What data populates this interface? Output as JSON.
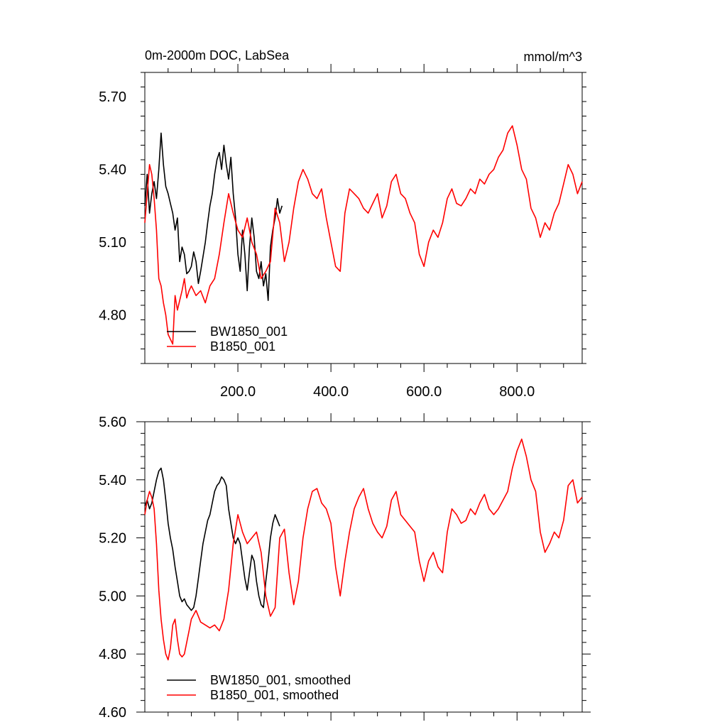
{
  "chart_data": [
    {
      "type": "line",
      "title": "0m-2000m DOC, LabSea",
      "units": "mmol/m^3",
      "xlim": [
        0,
        940
      ],
      "ylim": [
        4.6,
        5.8
      ],
      "xticks": [
        200,
        400,
        600,
        800
      ],
      "xtick_labels": [
        "200.0",
        "400.0",
        "600.0",
        "800.0"
      ],
      "yticks": [
        4.8,
        5.1,
        5.4,
        5.7
      ],
      "ytick_labels": [
        "4.80",
        "5.10",
        "5.40",
        "5.70"
      ],
      "legend_position": "bottom-left",
      "series": [
        {
          "name": "BW1850_001",
          "color": "#000000",
          "x": [
            0,
            5,
            10,
            15,
            20,
            25,
            30,
            35,
            40,
            45,
            50,
            55,
            60,
            65,
            70,
            75,
            80,
            85,
            90,
            95,
            100,
            105,
            110,
            115,
            120,
            125,
            130,
            135,
            140,
            145,
            150,
            155,
            160,
            165,
            170,
            175,
            180,
            185,
            190,
            195,
            200,
            205,
            210,
            215,
            220,
            225,
            230,
            235,
            240,
            245,
            250,
            255,
            260,
            265,
            270,
            275,
            280,
            285,
            290,
            295
          ],
          "y": [
            5.25,
            5.38,
            5.22,
            5.3,
            5.35,
            5.28,
            5.4,
            5.55,
            5.42,
            5.33,
            5.3,
            5.26,
            5.22,
            5.15,
            5.2,
            5.02,
            5.08,
            5.05,
            4.97,
            4.98,
            5.0,
            5.06,
            5.02,
            4.93,
            4.98,
            5.04,
            5.1,
            5.18,
            5.25,
            5.3,
            5.38,
            5.44,
            5.47,
            5.4,
            5.5,
            5.42,
            5.36,
            5.45,
            5.3,
            5.2,
            5.05,
            4.98,
            5.15,
            5.05,
            4.9,
            5.08,
            5.2,
            5.12,
            4.98,
            4.95,
            5.02,
            4.92,
            4.97,
            4.86,
            5.08,
            5.15,
            5.2,
            5.28,
            5.22,
            5.25
          ]
        },
        {
          "name": "B1850_001",
          "color": "#ff0000",
          "x": [
            0,
            5,
            10,
            15,
            20,
            25,
            30,
            35,
            40,
            45,
            50,
            55,
            60,
            65,
            70,
            75,
            80,
            85,
            90,
            95,
            100,
            110,
            120,
            130,
            140,
            150,
            160,
            170,
            180,
            190,
            200,
            210,
            220,
            230,
            240,
            250,
            260,
            270,
            280,
            290,
            300,
            310,
            320,
            330,
            340,
            350,
            360,
            370,
            380,
            390,
            400,
            410,
            420,
            430,
            440,
            450,
            460,
            470,
            480,
            490,
            500,
            510,
            520,
            530,
            540,
            550,
            560,
            570,
            580,
            590,
            600,
            610,
            620,
            630,
            640,
            650,
            660,
            670,
            680,
            690,
            700,
            710,
            720,
            730,
            740,
            750,
            760,
            770,
            780,
            790,
            800,
            810,
            820,
            830,
            840,
            850,
            860,
            870,
            880,
            890,
            900,
            910,
            920,
            930,
            940
          ],
          "y": [
            5.18,
            5.3,
            5.42,
            5.38,
            5.28,
            5.15,
            4.95,
            4.92,
            4.85,
            4.8,
            4.72,
            4.7,
            4.68,
            4.88,
            4.82,
            4.86,
            4.9,
            4.95,
            4.87,
            4.9,
            4.92,
            4.88,
            4.9,
            4.85,
            4.92,
            4.95,
            5.05,
            5.18,
            5.3,
            5.22,
            5.15,
            5.12,
            5.2,
            5.1,
            5.05,
            4.95,
            4.98,
            5.02,
            5.24,
            5.18,
            5.02,
            5.1,
            5.24,
            5.35,
            5.4,
            5.36,
            5.3,
            5.28,
            5.32,
            5.2,
            5.1,
            5.0,
            4.98,
            5.22,
            5.32,
            5.3,
            5.28,
            5.24,
            5.22,
            5.26,
            5.3,
            5.2,
            5.25,
            5.35,
            5.38,
            5.3,
            5.28,
            5.22,
            5.18,
            5.05,
            5.0,
            5.1,
            5.15,
            5.12,
            5.18,
            5.28,
            5.32,
            5.26,
            5.25,
            5.28,
            5.32,
            5.3,
            5.36,
            5.34,
            5.38,
            5.4,
            5.45,
            5.48,
            5.55,
            5.58,
            5.5,
            5.4,
            5.36,
            5.24,
            5.2,
            5.12,
            5.18,
            5.15,
            5.22,
            5.26,
            5.34,
            5.42,
            5.38,
            5.3,
            5.35
          ]
        }
      ]
    },
    {
      "type": "line",
      "title": "",
      "xlim": [
        0,
        940
      ],
      "ylim": [
        4.6,
        5.6
      ],
      "yticks": [
        4.6,
        4.8,
        5.0,
        5.2,
        5.4,
        5.6
      ],
      "ytick_labels": [
        "4.60",
        "4.80",
        "5.00",
        "5.20",
        "5.40",
        "5.60"
      ],
      "legend_position": "bottom-left",
      "series": [
        {
          "name": "BW1850_001, smoothed",
          "color": "#000000",
          "x": [
            0,
            5,
            10,
            15,
            20,
            25,
            30,
            35,
            40,
            45,
            50,
            55,
            60,
            65,
            70,
            75,
            80,
            85,
            90,
            95,
            100,
            105,
            110,
            115,
            120,
            125,
            130,
            135,
            140,
            145,
            150,
            155,
            160,
            165,
            170,
            175,
            180,
            185,
            190,
            195,
            200,
            205,
            210,
            215,
            220,
            225,
            230,
            235,
            240,
            245,
            250,
            255,
            260,
            265,
            270,
            275,
            280,
            285,
            290
          ],
          "y": [
            5.31,
            5.33,
            5.3,
            5.32,
            5.36,
            5.4,
            5.43,
            5.44,
            5.4,
            5.33,
            5.25,
            5.2,
            5.16,
            5.1,
            5.05,
            5.0,
            4.98,
            4.99,
            4.97,
            4.96,
            4.95,
            4.96,
            5.0,
            5.06,
            5.12,
            5.18,
            5.22,
            5.26,
            5.28,
            5.32,
            5.36,
            5.38,
            5.39,
            5.41,
            5.4,
            5.38,
            5.3,
            5.25,
            5.2,
            5.18,
            5.2,
            5.18,
            5.12,
            5.06,
            5.02,
            5.08,
            5.14,
            5.12,
            5.05,
            5.0,
            4.97,
            4.96,
            5.05,
            5.12,
            5.2,
            5.25,
            5.28,
            5.26,
            5.24
          ]
        },
        {
          "name": "B1850_001, smoothed",
          "color": "#ff0000",
          "x": [
            0,
            5,
            10,
            15,
            20,
            25,
            30,
            35,
            40,
            45,
            50,
            55,
            60,
            65,
            70,
            75,
            80,
            85,
            90,
            95,
            100,
            110,
            120,
            130,
            140,
            150,
            160,
            170,
            180,
            190,
            200,
            210,
            220,
            230,
            240,
            250,
            260,
            270,
            280,
            290,
            300,
            310,
            320,
            330,
            340,
            350,
            360,
            370,
            380,
            390,
            400,
            410,
            420,
            430,
            440,
            450,
            460,
            470,
            480,
            490,
            500,
            510,
            520,
            530,
            540,
            550,
            560,
            570,
            580,
            590,
            600,
            610,
            620,
            630,
            640,
            650,
            660,
            670,
            680,
            690,
            700,
            710,
            720,
            730,
            740,
            750,
            760,
            770,
            780,
            790,
            800,
            810,
            820,
            830,
            840,
            850,
            860,
            870,
            880,
            890,
            900,
            910,
            920,
            930,
            940
          ],
          "y": [
            5.28,
            5.33,
            5.36,
            5.34,
            5.3,
            5.18,
            5.02,
            4.92,
            4.85,
            4.8,
            4.78,
            4.82,
            4.9,
            4.92,
            4.85,
            4.8,
            4.79,
            4.8,
            4.84,
            4.88,
            4.92,
            4.95,
            4.91,
            4.9,
            4.89,
            4.9,
            4.88,
            4.92,
            5.02,
            5.18,
            5.28,
            5.22,
            5.18,
            5.2,
            5.22,
            5.15,
            5.0,
            4.93,
            4.96,
            5.2,
            5.23,
            5.08,
            4.97,
            5.05,
            5.2,
            5.3,
            5.36,
            5.37,
            5.32,
            5.3,
            5.25,
            5.1,
            5.0,
            5.12,
            5.22,
            5.3,
            5.34,
            5.37,
            5.3,
            5.25,
            5.22,
            5.2,
            5.24,
            5.33,
            5.36,
            5.28,
            5.26,
            5.24,
            5.22,
            5.12,
            5.05,
            5.12,
            5.15,
            5.1,
            5.08,
            5.22,
            5.3,
            5.28,
            5.25,
            5.26,
            5.3,
            5.28,
            5.32,
            5.35,
            5.3,
            5.28,
            5.3,
            5.33,
            5.36,
            5.44,
            5.5,
            5.54,
            5.48,
            5.4,
            5.36,
            5.22,
            5.15,
            5.18,
            5.22,
            5.2,
            5.26,
            5.38,
            5.4,
            5.32,
            5.34
          ]
        }
      ]
    }
  ]
}
